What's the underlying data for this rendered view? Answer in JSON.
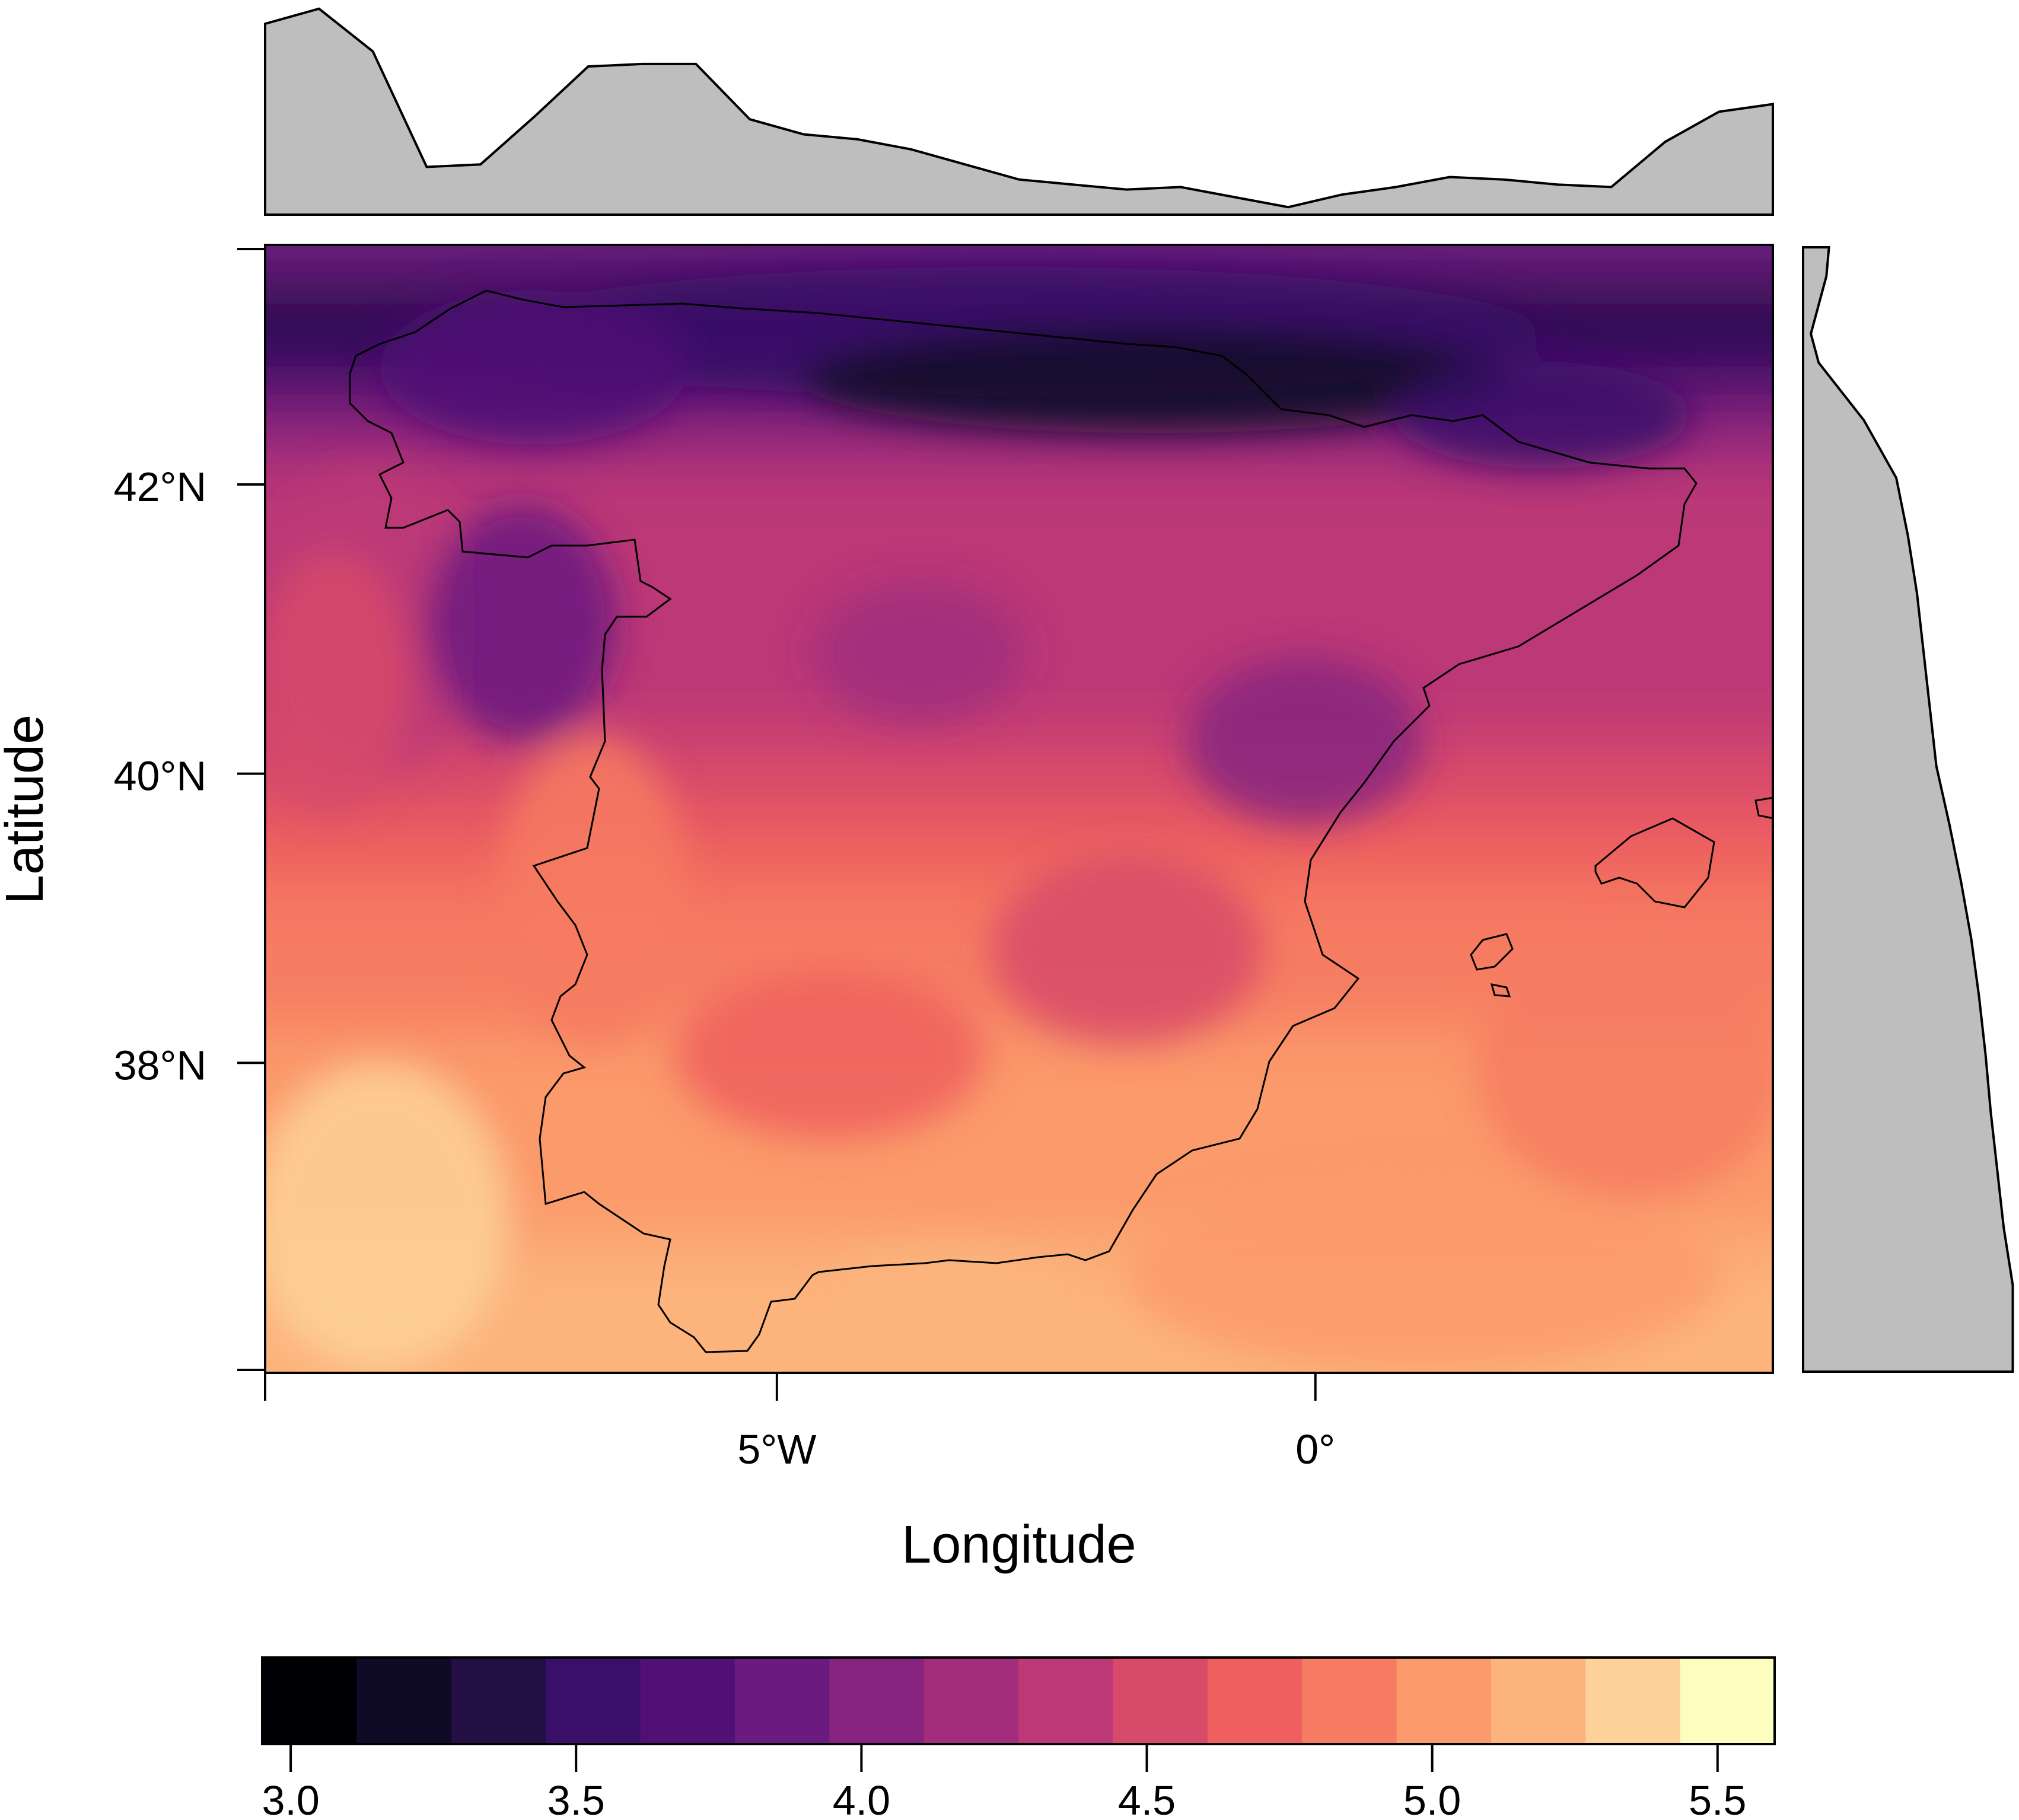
{
  "chart_data": {
    "type": "heatmap",
    "title": "",
    "xlabel": "Longitude",
    "ylabel": "Latitude",
    "xlim": [
      -10,
      4
    ],
    "ylim": [
      36,
      43.8
    ],
    "x_ticks": [
      {
        "value": -5,
        "label": "5°W"
      },
      {
        "value": 0,
        "label": "0°"
      }
    ],
    "y_ticks": [
      {
        "value": 42,
        "label": "42°N"
      },
      {
        "value": 40,
        "label": "40°N"
      },
      {
        "value": 38,
        "label": "38°N"
      }
    ],
    "colorbar": {
      "range": [
        2.95,
        5.6
      ],
      "ticks": [
        {
          "value": 3.0,
          "label": "3.0"
        },
        {
          "value": 3.5,
          "label": "3.5"
        },
        {
          "value": 4.0,
          "label": "4.0"
        },
        {
          "value": 4.5,
          "label": "4.5"
        },
        {
          "value": 5.0,
          "label": "5.0"
        },
        {
          "value": 5.5,
          "label": "5.5"
        }
      ],
      "colors": [
        "#000004",
        "#0f0a26",
        "#230f43",
        "#3a0f6a",
        "#501076",
        "#6a1b80",
        "#86247f",
        "#a12d7c",
        "#bc3877",
        "#d74a6a",
        "#ee5f5e",
        "#f67b62",
        "#fb9a6a",
        "#fcb47c",
        "#fdd19a",
        "#fcfdbf"
      ]
    },
    "field": {
      "description_free": true,
      "lat_levels": [
        {
          "lat": 43.6,
          "value": 3.8
        },
        {
          "lat": 43.2,
          "value": 3.3
        },
        {
          "lat": 42.8,
          "value": 3.6
        },
        {
          "lat": 42.4,
          "value": 4.1
        },
        {
          "lat": 42.0,
          "value": 4.3
        },
        {
          "lat": 41.5,
          "value": 4.3
        },
        {
          "lat": 41.0,
          "value": 4.3
        },
        {
          "lat": 40.5,
          "value": 4.4
        },
        {
          "lat": 40.0,
          "value": 4.5
        },
        {
          "lat": 39.5,
          "value": 4.7
        },
        {
          "lat": 39.0,
          "value": 4.8
        },
        {
          "lat": 38.5,
          "value": 4.9
        },
        {
          "lat": 38.0,
          "value": 5.0
        },
        {
          "lat": 37.5,
          "value": 5.0
        },
        {
          "lat": 37.0,
          "value": 5.1
        },
        {
          "lat": 36.5,
          "value": 5.2
        },
        {
          "lat": 36.1,
          "value": 5.2
        }
      ]
    },
    "top_marginal": {
      "lon": [
        -10,
        -9.5,
        -9,
        -8.5,
        -8,
        -7.5,
        -7,
        -6.5,
        -6,
        -5.5,
        -5,
        -4.5,
        -4,
        -3.5,
        -3,
        -2.5,
        -2,
        -1.5,
        -1,
        -0.5,
        0,
        0.5,
        1,
        1.5,
        2,
        2.5,
        3,
        3.5,
        4
      ],
      "value": [
        4.96,
        5.02,
        4.85,
        4.39,
        4.4,
        4.59,
        4.79,
        4.8,
        4.8,
        4.58,
        4.52,
        4.5,
        4.46,
        4.4,
        4.34,
        4.32,
        4.3,
        4.31,
        4.27,
        4.23,
        4.28,
        4.31,
        4.35,
        4.34,
        4.32,
        4.31,
        4.49,
        4.61,
        4.64
      ]
    },
    "right_marginal": {
      "lat": [
        43.8,
        43.6,
        43.2,
        43.0,
        42.6,
        42.2,
        41.8,
        41.4,
        41.0,
        40.6,
        40.2,
        39.8,
        39.4,
        39.0,
        38.6,
        38.2,
        37.8,
        37.4,
        37.0,
        36.6,
        36.0
      ],
      "value": [
        3.7,
        3.68,
        3.56,
        3.62,
        3.97,
        4.22,
        4.31,
        4.38,
        4.43,
        4.48,
        4.53,
        4.63,
        4.72,
        4.8,
        4.86,
        4.91,
        4.95,
        5.0,
        5.05,
        5.12,
        5.12
      ]
    },
    "grid": false,
    "legend": "bottom"
  }
}
